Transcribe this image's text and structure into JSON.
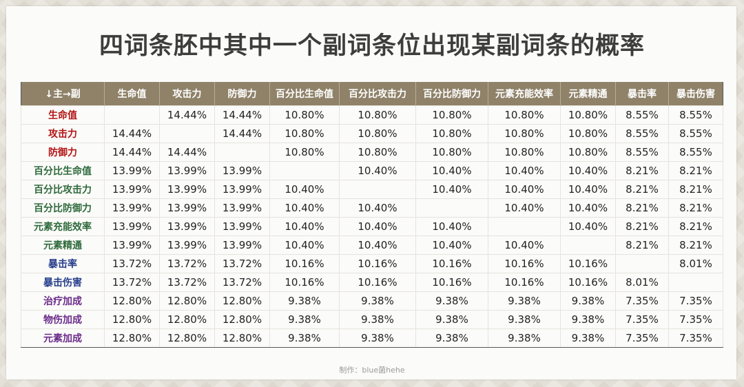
{
  "title": "四词条胚中其中一个副词条位出现某副词条的概率",
  "credit": "制作：blue菌hehe",
  "header": [
    "↓主→副",
    "生命值",
    "攻击力",
    "防御力",
    "百分比生命值",
    "百分比攻击力",
    "百分比防御力",
    "元素充能效率",
    "元素精通",
    "暴击率",
    "暴击伤害"
  ],
  "rows": [
    {
      "label": "生命值",
      "cells": [
        "",
        "14.44%",
        "14.44%",
        "10.80%",
        "10.80%",
        "10.80%",
        "10.80%",
        "10.80%",
        "8.55%",
        "8.55%"
      ]
    },
    {
      "label": "攻击力",
      "cells": [
        "14.44%",
        "",
        "14.44%",
        "10.80%",
        "10.80%",
        "10.80%",
        "10.80%",
        "10.80%",
        "8.55%",
        "8.55%"
      ]
    },
    {
      "label": "防御力",
      "cells": [
        "14.44%",
        "14.44%",
        "",
        "10.80%",
        "10.80%",
        "10.80%",
        "10.80%",
        "10.80%",
        "8.55%",
        "8.55%"
      ]
    },
    {
      "label": "百分比生命值",
      "cells": [
        "13.99%",
        "13.99%",
        "13.99%",
        "",
        "10.40%",
        "10.40%",
        "10.40%",
        "10.40%",
        "8.21%",
        "8.21%"
      ]
    },
    {
      "label": "百分比攻击力",
      "cells": [
        "13.99%",
        "13.99%",
        "13.99%",
        "10.40%",
        "",
        "10.40%",
        "10.40%",
        "10.40%",
        "8.21%",
        "8.21%"
      ]
    },
    {
      "label": "百分比防御力",
      "cells": [
        "13.99%",
        "13.99%",
        "13.99%",
        "10.40%",
        "10.40%",
        "",
        "10.40%",
        "10.40%",
        "8.21%",
        "8.21%"
      ]
    },
    {
      "label": "元素充能效率",
      "cells": [
        "13.99%",
        "13.99%",
        "13.99%",
        "10.40%",
        "10.40%",
        "10.40%",
        "",
        "10.40%",
        "8.21%",
        "8.21%"
      ]
    },
    {
      "label": "元素精通",
      "cells": [
        "13.99%",
        "13.99%",
        "13.99%",
        "10.40%",
        "10.40%",
        "10.40%",
        "10.40%",
        "",
        "8.21%",
        "8.21%"
      ]
    },
    {
      "label": "暴击率",
      "cells": [
        "13.72%",
        "13.72%",
        "13.72%",
        "10.16%",
        "10.16%",
        "10.16%",
        "10.16%",
        "10.16%",
        "",
        "8.01%"
      ]
    },
    {
      "label": "暴击伤害",
      "cells": [
        "13.72%",
        "13.72%",
        "13.72%",
        "10.16%",
        "10.16%",
        "10.16%",
        "10.16%",
        "10.16%",
        "8.01%",
        ""
      ]
    },
    {
      "label": "治疗加成",
      "cells": [
        "12.80%",
        "12.80%",
        "12.80%",
        "9.38%",
        "9.38%",
        "9.38%",
        "9.38%",
        "9.38%",
        "7.35%",
        "7.35%"
      ]
    },
    {
      "label": "物伤加成",
      "cells": [
        "12.80%",
        "12.80%",
        "12.80%",
        "9.38%",
        "9.38%",
        "9.38%",
        "9.38%",
        "9.38%",
        "7.35%",
        "7.35%"
      ]
    },
    {
      "label": "元素加成",
      "cells": [
        "12.80%",
        "12.80%",
        "12.80%",
        "9.38%",
        "9.38%",
        "9.38%",
        "9.38%",
        "9.38%",
        "7.35%",
        "7.35%"
      ]
    }
  ],
  "colors": {
    "header_bg": "#8f8269",
    "group_flat": "#b21414",
    "group_percent": "#2f6a3c",
    "group_crit": "#253c8a",
    "group_bonus": "#6a2a8a"
  }
}
